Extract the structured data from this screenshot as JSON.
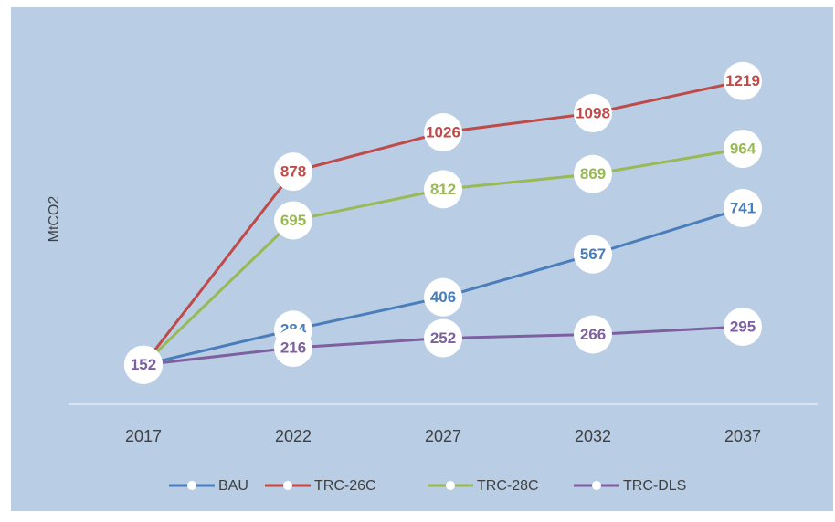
{
  "chart_data": {
    "type": "line",
    "y_label": "MtCO2",
    "categories": [
      "2017",
      "2022",
      "2027",
      "2032",
      "2037"
    ],
    "series": [
      {
        "name": "BAU",
        "color": "#4a7ebb",
        "values": [
          152,
          284,
          406,
          567,
          741
        ]
      },
      {
        "name": "TRC-26C",
        "color": "#be4b48",
        "values": [
          152,
          878,
          1026,
          1098,
          1219
        ]
      },
      {
        "name": "TRC-28C",
        "color": "#98b954",
        "values": [
          152,
          695,
          812,
          869,
          964
        ]
      },
      {
        "name": "TRC-DLS",
        "color": "#7d60a0",
        "values": [
          152,
          216,
          252,
          266,
          295
        ]
      }
    ],
    "ylim": [
      0,
      1400
    ],
    "legend": "bottom"
  }
}
